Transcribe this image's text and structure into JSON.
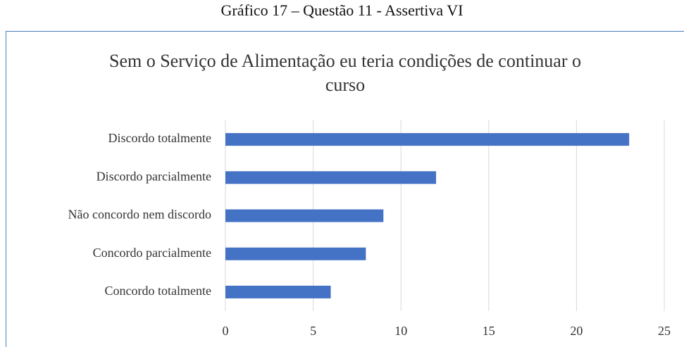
{
  "chart_data": {
    "type": "bar",
    "orientation": "horizontal",
    "caption": "Gráfico 17 – Questão 11 - Assertiva VI",
    "title": "Sem o Serviço de Alimentação eu teria condições de continuar o curso",
    "categories": [
      "Discordo totalmente",
      "Discordo parcialmente",
      "Não concordo nem discordo",
      "Concordo parcialmente",
      "Concordo totalmente"
    ],
    "values": [
      23,
      12,
      9,
      8,
      6
    ],
    "color": "#4472c4",
    "xlim": [
      0,
      25
    ],
    "xticks": [
      0,
      5,
      10,
      15,
      20,
      25
    ],
    "grid": true
  }
}
